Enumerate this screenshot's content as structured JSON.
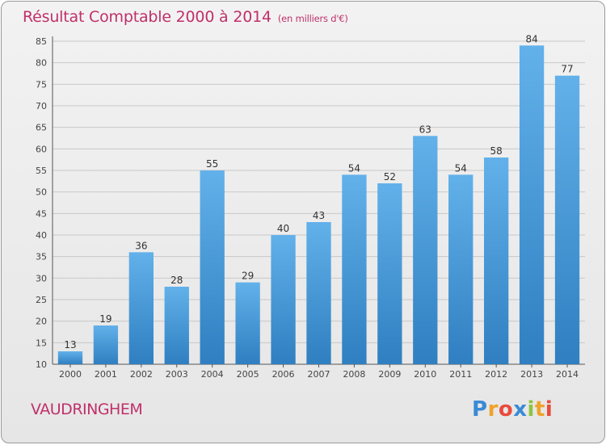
{
  "header": {
    "title": "Résultat Comptable 2000 à 2014",
    "unit": "(en milliers d'€)"
  },
  "footer": {
    "commune": "VAUDRINGHEM",
    "logo_text": "Proxiti"
  },
  "colors": {
    "title": "#c0306a",
    "bar_top": "#62b1ea",
    "bar_bottom": "#2f7fc1",
    "grid": "#c8c8c8"
  },
  "chart_data": {
    "type": "bar",
    "title": "Résultat Comptable 2000 à 2014",
    "subtitle": "(en milliers d'€)",
    "xlabel": "",
    "ylabel": "",
    "categories": [
      "2000",
      "2001",
      "2002",
      "2003",
      "2004",
      "2005",
      "2006",
      "2007",
      "2008",
      "2009",
      "2010",
      "2011",
      "2012",
      "2013",
      "2014"
    ],
    "values": [
      13,
      19,
      36,
      28,
      55,
      29,
      40,
      43,
      54,
      52,
      63,
      54,
      58,
      84,
      77
    ],
    "ylim": [
      10,
      85
    ],
    "yticks": [
      10,
      15,
      20,
      25,
      30,
      35,
      40,
      45,
      50,
      55,
      60,
      65,
      70,
      75,
      80,
      85
    ],
    "grid": true,
    "legend": "none"
  }
}
